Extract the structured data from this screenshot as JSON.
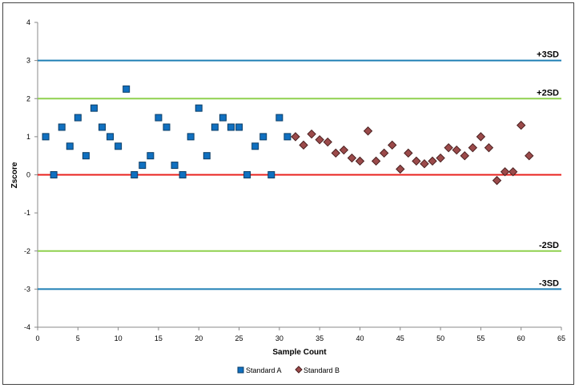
{
  "chart_data": {
    "type": "scatter",
    "title": "",
    "xlabel": "Sample Count",
    "ylabel": "Zscore",
    "xlim": [
      0,
      65
    ],
    "ylim": [
      -4,
      4
    ],
    "xticks": [
      0,
      5,
      10,
      15,
      20,
      25,
      30,
      35,
      40,
      45,
      50,
      55,
      60,
      65
    ],
    "yticks": [
      -4,
      -3,
      -2,
      -1,
      0,
      1,
      2,
      3,
      4
    ],
    "grid": false,
    "legend_position": "bottom",
    "reference_lines": [
      {
        "label": "+3SD",
        "y": 3,
        "color": "#1f7fb5"
      },
      {
        "label": "+2SD",
        "y": 2,
        "color": "#8fd14f"
      },
      {
        "label": "",
        "y": 0,
        "color": "#e8201c"
      },
      {
        "label": "-2SD",
        "y": -2,
        "color": "#8fd14f"
      },
      {
        "label": "-3SD",
        "y": -3,
        "color": "#1f7fb5"
      }
    ],
    "series": [
      {
        "name": "Standard A",
        "marker": "square",
        "color": "#1070c0",
        "x": [
          1,
          2,
          3,
          4,
          5,
          6,
          7,
          8,
          9,
          10,
          11,
          12,
          13,
          14,
          15,
          16,
          17,
          18,
          19,
          20,
          21,
          22,
          23,
          24,
          25,
          26,
          27,
          28,
          29,
          30,
          31
        ],
        "y": [
          1,
          0,
          1.25,
          0.75,
          1.5,
          0.5,
          1.75,
          1.25,
          1,
          0.75,
          2.25,
          0,
          0.25,
          0.5,
          1.5,
          1.25,
          0.25,
          0,
          1,
          1.75,
          0.5,
          1.25,
          1.5,
          1.25,
          1.25,
          0,
          0.75,
          1,
          0,
          1.5,
          1
        ]
      },
      {
        "name": "Standard B",
        "marker": "diamond",
        "color": "#9b4a4a",
        "x": [
          32,
          33,
          34,
          35,
          36,
          37,
          38,
          39,
          40,
          41,
          42,
          43,
          44,
          45,
          46,
          47,
          48,
          49,
          50,
          51,
          52,
          53,
          54,
          55,
          56,
          57,
          58,
          59,
          60,
          61
        ],
        "y": [
          1,
          0.78,
          1.07,
          0.92,
          0.86,
          0.57,
          0.65,
          0.44,
          0.36,
          1.15,
          0.36,
          0.57,
          0.78,
          0.15,
          0.57,
          0.36,
          0.29,
          0.36,
          0.44,
          0.71,
          0.65,
          0.5,
          0.71,
          1,
          0.71,
          -0.15,
          0.08,
          0.08,
          1.3,
          0.5
        ]
      }
    ]
  }
}
